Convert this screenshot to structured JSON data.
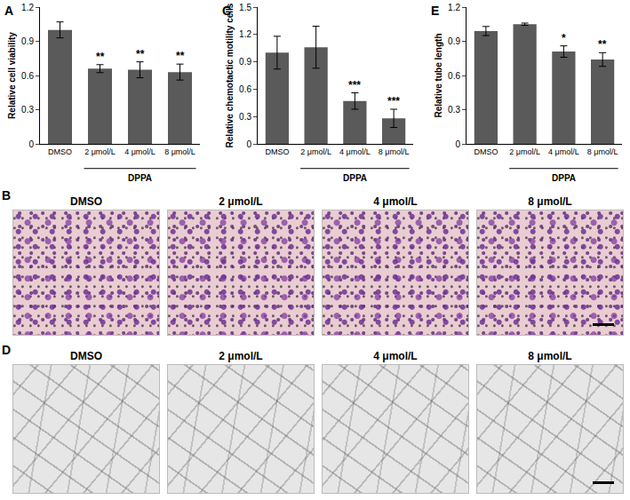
{
  "chart_data": [
    {
      "type": "bar",
      "label": "A",
      "ylabel": "Relative cell viability",
      "categories": [
        "DMSO",
        "2 μmol/L",
        "4 μmol/L",
        "8 μmol/L"
      ],
      "values": [
        1.0,
        0.66,
        0.65,
        0.63
      ],
      "errors": [
        0.07,
        0.035,
        0.07,
        0.07
      ],
      "significance": [
        null,
        "**",
        "**",
        "**"
      ],
      "group_label": "DPPA",
      "color": "#5a5a5a",
      "ylim": [
        0,
        1.2
      ],
      "yticks": [
        0,
        0.3,
        0.6,
        0.9,
        1.2
      ],
      "grid": false
    },
    {
      "type": "bar",
      "label": "C",
      "ylabel": "Relative chemotactic motility cells",
      "categories": [
        "DMSO",
        "2 μmol/L",
        "4 μmol/L",
        "8 μmol/L"
      ],
      "values": [
        1.0,
        1.06,
        0.47,
        0.28
      ],
      "errors": [
        0.18,
        0.23,
        0.09,
        0.1
      ],
      "significance": [
        null,
        null,
        "***",
        "***"
      ],
      "group_label": "DPPA",
      "color": "#5a5a5a",
      "ylim": [
        0,
        1.5
      ],
      "yticks": [
        0,
        0.3,
        0.6,
        0.9,
        1.2,
        1.5
      ],
      "grid": false
    },
    {
      "type": "bar",
      "label": "E",
      "ylabel": "Relative tube length",
      "categories": [
        "DMSO",
        "2 μmol/L",
        "4 μmol/L",
        "8 μmol/L"
      ],
      "values": [
        0.99,
        1.05,
        0.81,
        0.74
      ],
      "errors": [
        0.04,
        0.01,
        0.05,
        0.06
      ],
      "significance": [
        null,
        null,
        "*",
        "**"
      ],
      "group_label": "DPPA",
      "color": "#5a5a5a",
      "ylim": [
        0,
        1.2
      ],
      "yticks": [
        0,
        0.3,
        0.6,
        0.9,
        1.2
      ],
      "grid": false
    }
  ],
  "image_panels": [
    {
      "label": "B",
      "style": "stain",
      "labels": [
        "DMSO",
        "2 μmol/L",
        "4 μmol/L",
        "8 μmol/L"
      ]
    },
    {
      "label": "D",
      "style": "tube",
      "labels": [
        "DMSO",
        "2 μmol/L",
        "4 μmol/L",
        "8 μmol/L"
      ]
    }
  ]
}
